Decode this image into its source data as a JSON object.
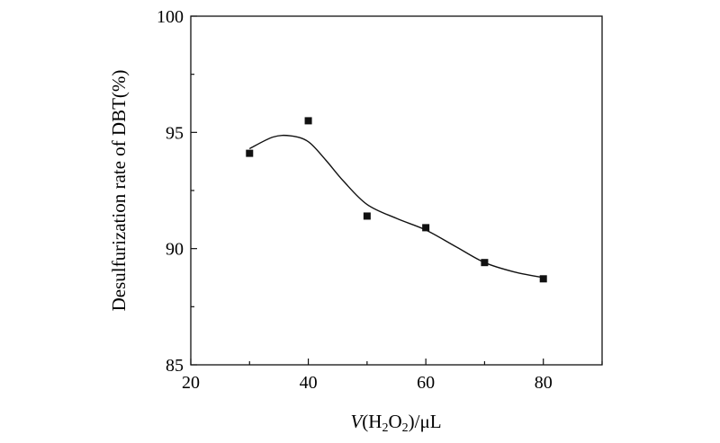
{
  "chart_data": {
    "type": "scatter",
    "title": "",
    "xlabel": "V(H2O2)/μL",
    "xlabel_parts": {
      "var": "V",
      "open": "(H",
      "sub1": "2",
      "mid": "O",
      "sub2": "2",
      "close": ")/μL"
    },
    "ylabel": "Desulfurization rate of DBT(%)",
    "xlim": [
      20,
      90
    ],
    "ylim": [
      85,
      100
    ],
    "x_ticks": [
      20,
      40,
      60,
      80
    ],
    "y_ticks": [
      85,
      90,
      95,
      100
    ],
    "grid": false,
    "legend": "none",
    "series": [
      {
        "x": [
          30,
          40,
          50,
          60,
          70,
          80
        ],
        "values": [
          94.1,
          95.5,
          91.4,
          90.9,
          89.4,
          88.7
        ],
        "marker": "square",
        "color": "#111111"
      }
    ],
    "fit_curve": {
      "x": [
        30,
        34,
        37,
        40,
        43,
        46,
        50,
        55,
        60,
        65,
        70,
        75,
        80
      ],
      "values": [
        94.3,
        94.8,
        94.85,
        94.6,
        93.8,
        92.9,
        91.9,
        91.3,
        90.8,
        90.1,
        89.4,
        89.0,
        88.75
      ],
      "color": "#111111"
    }
  }
}
